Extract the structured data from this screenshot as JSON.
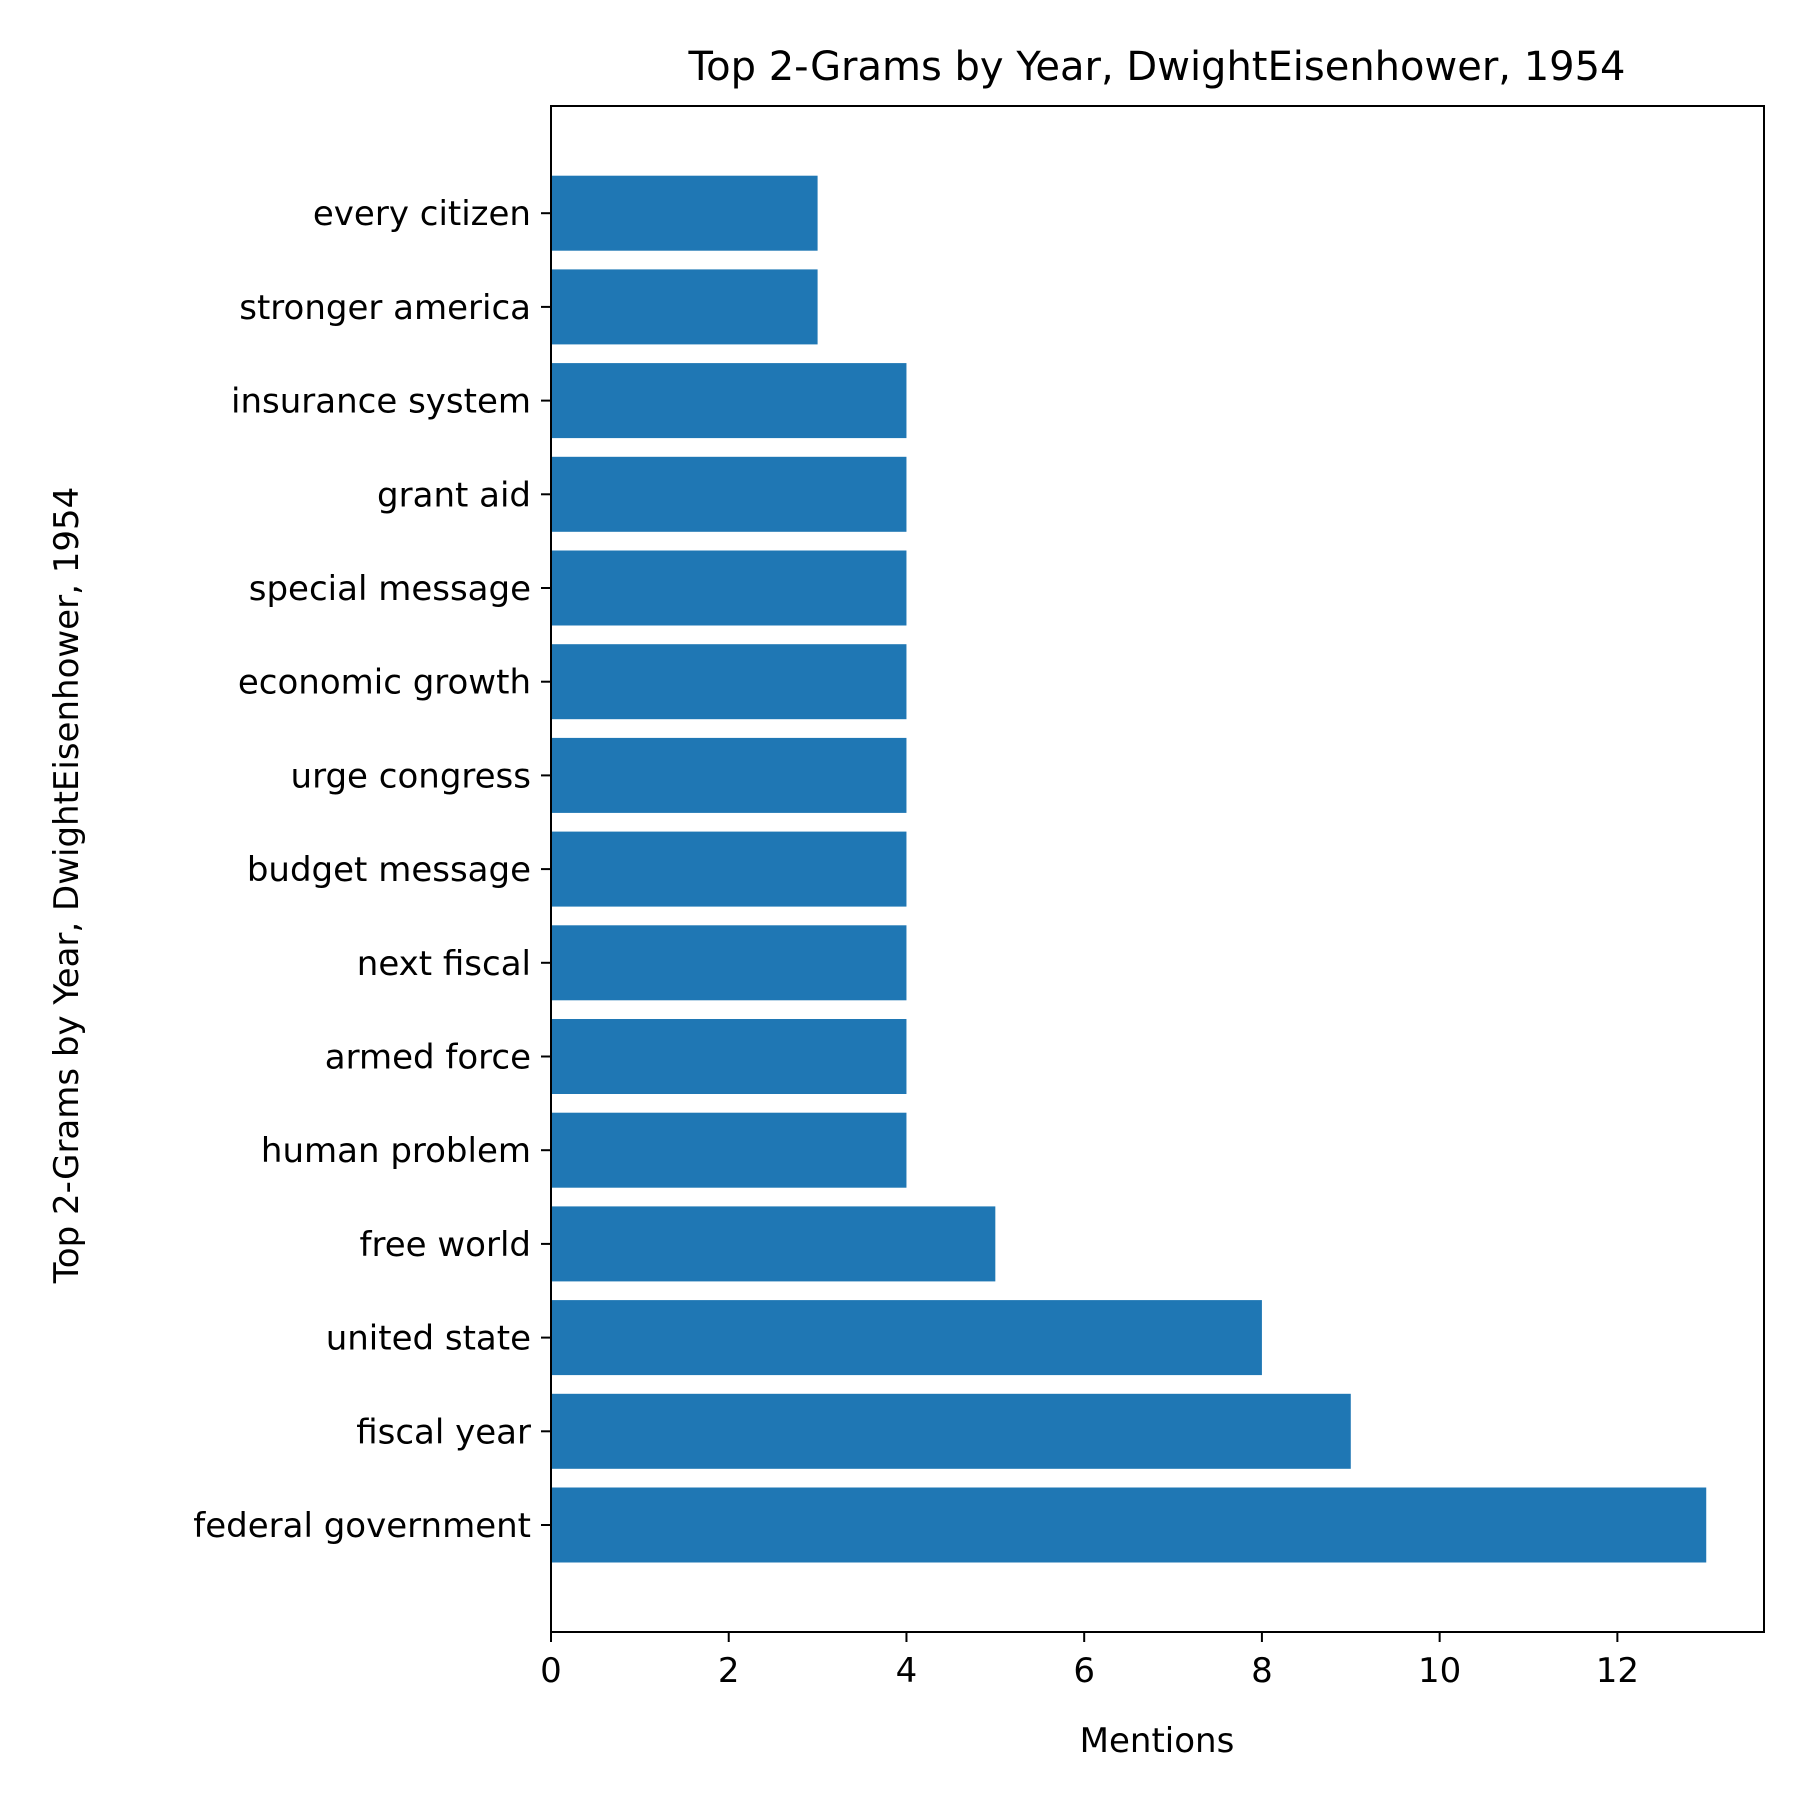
{
  "chart_data": {
    "type": "bar",
    "orientation": "horizontal",
    "title": "Top 2-Grams by Year, DwightEisenhower, 1954",
    "xlabel": "Mentions",
    "ylabel": "Top 2-Grams by Year, DwightEisenhower, 1954",
    "categories": [
      "federal government",
      "fiscal year",
      "united state",
      "free world",
      "human problem",
      "armed force",
      "next fiscal",
      "budget message",
      "urge congress",
      "economic growth",
      "special message",
      "grant aid",
      "insurance system",
      "stronger america",
      "every citizen"
    ],
    "values": [
      13,
      9,
      8,
      5,
      4,
      4,
      4,
      4,
      4,
      4,
      4,
      4,
      4,
      3,
      3
    ],
    "xlim": [
      0,
      13.65
    ],
    "xticks": [
      "0",
      "2",
      "4",
      "6",
      "8",
      "10",
      "12"
    ],
    "grid": false,
    "colors": {
      "bar": "#1f77b4",
      "axes": "#000000",
      "background": "#ffffff"
    }
  }
}
